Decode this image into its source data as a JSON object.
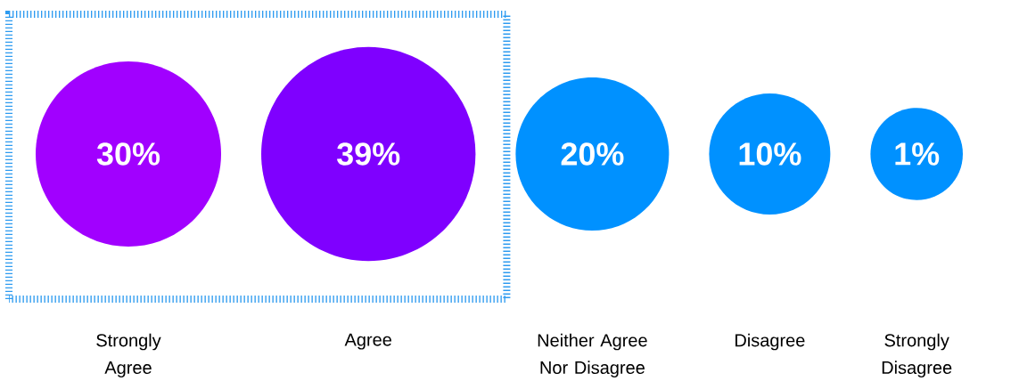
{
  "chart_data": {
    "type": "other",
    "categories": [
      "Strongly Agree",
      "Agree",
      "Neither Agree Nor Disagree",
      "Disagree",
      "Strongly Disagree"
    ],
    "values": [
      30,
      39,
      20,
      10,
      1
    ],
    "value_labels": [
      "30%",
      "39%",
      "20%",
      "10%",
      "1%"
    ],
    "colors": [
      "#a100ff",
      "#7f00ff",
      "#0091ff",
      "#0091ff",
      "#0091ff"
    ],
    "data_labels": true
  }
}
